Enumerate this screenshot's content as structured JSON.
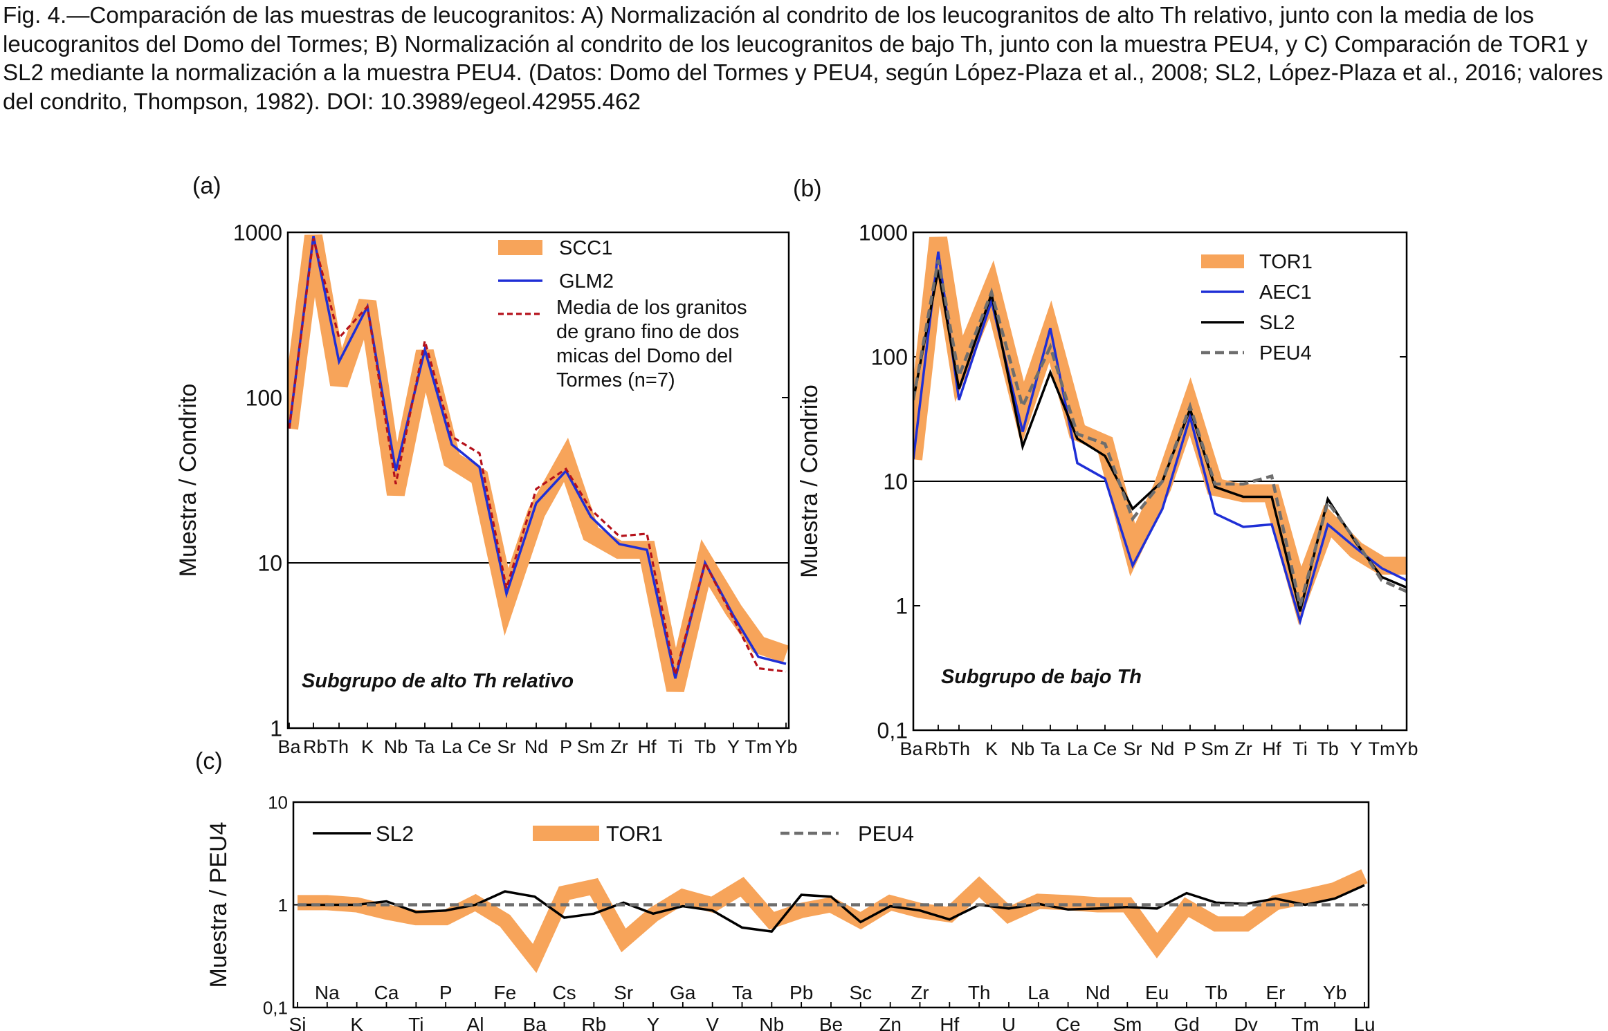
{
  "caption": "Fig. 4.—Comparación de las muestras de leucogranitos: A) Normalización al condrito de los leucogranitos de alto Th relativo, junto con la media de los leucogranitos del Domo del Tormes; B) Normalización al condrito de los leucogranitos de bajo Th, junto con la muestra PEU4, y C) Comparación de TOR1 y SL2 mediante la normalización a la muestra PEU4. (Datos: Domo del Tormes y PEU4, según López-Plaza et al., 2008; SL2, López-Plaza et al., 2016; valores del condrito, Thompson, 1982). DOI: 10.3989/egeol.42955.462",
  "colors": {
    "orange": "#f7a45a",
    "blue": "#1f2fd6",
    "red_dashed": "#b5121b",
    "black": "#000000",
    "grey_dashed": "#6e6e6e"
  },
  "chart_data": [
    {
      "panel_label": "(a)",
      "type": "line",
      "y_scale": "log",
      "ylabel": "Muestra / Condrito",
      "ylim": [
        1,
        1000
      ],
      "y_ticks": [
        "1",
        "10",
        "100",
        "1000"
      ],
      "reference_line": 10,
      "annotation": "Subgrupo de alto Th relativo",
      "legend_position": "top-right",
      "categories": [
        "Ba",
        "Rb",
        "Th",
        "K",
        "Nb",
        "Ta",
        "La",
        "Ce",
        "Sr",
        "Nd",
        "P",
        "Sm",
        "Zr",
        "Hf",
        "Ti",
        "Tb",
        "Y",
        "Tm",
        "Yb"
      ],
      "category_labels": [
        "Ba",
        "RbTh",
        "K",
        "Nb",
        "Ta",
        "La",
        "Ce",
        "Sr",
        "Nd",
        "P",
        "Sm",
        "Zr",
        "Hf",
        "Ti",
        "Tb",
        "Y",
        "Tm",
        "Yb"
      ],
      "series": [
        {
          "name": "SCC1",
          "style": "band",
          "values": [
            65,
            950,
            120,
            380,
            26,
            190,
            42,
            33,
            5.8,
            20,
            42,
            15,
            12,
            12,
            1.7,
            10,
            5.2,
            3.2,
            2.8
          ]
        },
        {
          "name": "GLM2",
          "style": "solid",
          "values": [
            65,
            950,
            165,
            355,
            36,
            195,
            52,
            38,
            6.5,
            23,
            36,
            19,
            13,
            12,
            2.0,
            10,
            4.8,
            2.7,
            2.45
          ]
        },
        {
          "name": "Media de los granitos de grano fino de dos micas del Domo del Tormes (n=7)",
          "style": "dashed",
          "values": [
            65,
            920,
            230,
            355,
            30,
            220,
            58,
            46,
            7.0,
            28,
            37,
            21,
            14.5,
            15,
            2.1,
            10,
            4.6,
            2.3,
            2.2
          ]
        }
      ]
    },
    {
      "panel_label": "(b)",
      "type": "line",
      "y_scale": "log",
      "ylabel": "Muestra / Condrito",
      "ylim": [
        0.1,
        1000
      ],
      "y_ticks": [
        "0,1",
        "1",
        "10",
        "100",
        "1000"
      ],
      "reference_line": 10,
      "annotation": "Subgrupo de bajo Th",
      "legend_position": "top-right",
      "categories": [
        "Ba",
        "Rb",
        "Th",
        "K",
        "Nb",
        "Ta",
        "La",
        "Ce",
        "Sr",
        "Nd",
        "P",
        "Sm",
        "Zr",
        "Hf",
        "Ti",
        "Tb",
        "Y",
        "Tm",
        "Yb"
      ],
      "category_labels": [
        "Ba",
        "RbTh",
        "K",
        "Nb",
        "Ta",
        "La",
        "Ce",
        "Sr",
        "Nd",
        "P",
        "Sm",
        "Zr",
        "Hf",
        "Ti",
        "Tb",
        "Y",
        "Tm",
        "Yb"
      ],
      "series": [
        {
          "name": "TOR1",
          "style": "band",
          "values": [
            15,
            900,
            80,
            350,
            35,
            160,
            25,
            20,
            2.8,
            9,
            40,
            9,
            8,
            8,
            1.2,
            4.8,
            2.8,
            2.1,
            2.1
          ]
        },
        {
          "name": "AEC1",
          "style": "solid",
          "values": [
            15,
            700,
            45,
            280,
            25,
            170,
            14,
            10.5,
            2.1,
            6,
            33,
            5.5,
            4.3,
            4.5,
            0.75,
            4.5,
            2.9,
            2.0,
            1.6
          ]
        },
        {
          "name": "SL2",
          "style": "solid",
          "values": [
            45,
            500,
            55,
            320,
            19,
            75,
            22,
            16,
            6.0,
            10,
            38,
            9,
            7.5,
            7.5,
            0.9,
            7.2,
            3.2,
            1.7,
            1.4
          ]
        },
        {
          "name": "PEU4",
          "style": "dashed",
          "values": [
            45,
            600,
            70,
            330,
            40,
            120,
            24,
            20,
            5.0,
            10,
            40,
            9.5,
            9.5,
            11,
            1.0,
            6.8,
            3.3,
            1.6,
            1.3
          ]
        }
      ]
    },
    {
      "panel_label": "(c)",
      "type": "line",
      "y_scale": "log",
      "ylabel": "Muestra / PEU4",
      "ylim": [
        0.1,
        10
      ],
      "y_ticks": [
        "0,1",
        "1",
        "10"
      ],
      "legend_position": "top",
      "categories": [
        "Si",
        "Na",
        "K",
        "Ca",
        "Ti",
        "P",
        "Al",
        "Fe",
        "Ba",
        "Cs",
        "Rb",
        "Sr",
        "Y",
        "Ga",
        "V",
        "Ta",
        "Nb",
        "Pb",
        "Be",
        "Sc",
        "Zn",
        "Zr",
        "Hf",
        "Th",
        "U",
        "La",
        "Ce",
        "Nd",
        "Sm",
        "Eu",
        "Gd",
        "Tb",
        "Dy",
        "Er",
        "Tm",
        "Yb",
        "Lu"
      ],
      "series": [
        {
          "name": "SL2",
          "style": "solid",
          "values": [
            1.0,
            1.0,
            1.0,
            1.08,
            0.85,
            0.88,
            1.0,
            1.35,
            1.2,
            0.75,
            0.82,
            1.05,
            0.82,
            0.97,
            0.88,
            0.6,
            0.55,
            1.25,
            1.2,
            0.68,
            0.97,
            0.88,
            0.72,
            1.0,
            0.92,
            1.02,
            0.9,
            0.92,
            0.95,
            0.92,
            1.3,
            1.05,
            1.02,
            1.15,
            1.0,
            1.15,
            1.55
          ]
        },
        {
          "name": "TOR1",
          "style": "band",
          "values": [
            1.05,
            1.05,
            1.0,
            0.85,
            0.75,
            0.75,
            1.05,
            0.7,
            0.3,
            1.3,
            1.5,
            0.45,
            0.8,
            1.2,
            1.0,
            1.5,
            0.7,
            0.88,
            1.0,
            0.7,
            1.05,
            0.88,
            0.8,
            1.5,
            0.8,
            1.08,
            1.05,
            1.0,
            1.0,
            0.4,
            0.95,
            0.65,
            0.65,
            1.05,
            1.2,
            1.4,
            1.9
          ]
        },
        {
          "name": "PEU4",
          "style": "dashed",
          "values": [
            1,
            1,
            1,
            1,
            1,
            1,
            1,
            1,
            1,
            1,
            1,
            1,
            1,
            1,
            1,
            1,
            1,
            1,
            1,
            1,
            1,
            1,
            1,
            1,
            1,
            1,
            1,
            1,
            1,
            1,
            1,
            1,
            1,
            1,
            1,
            1,
            1
          ]
        }
      ]
    }
  ]
}
